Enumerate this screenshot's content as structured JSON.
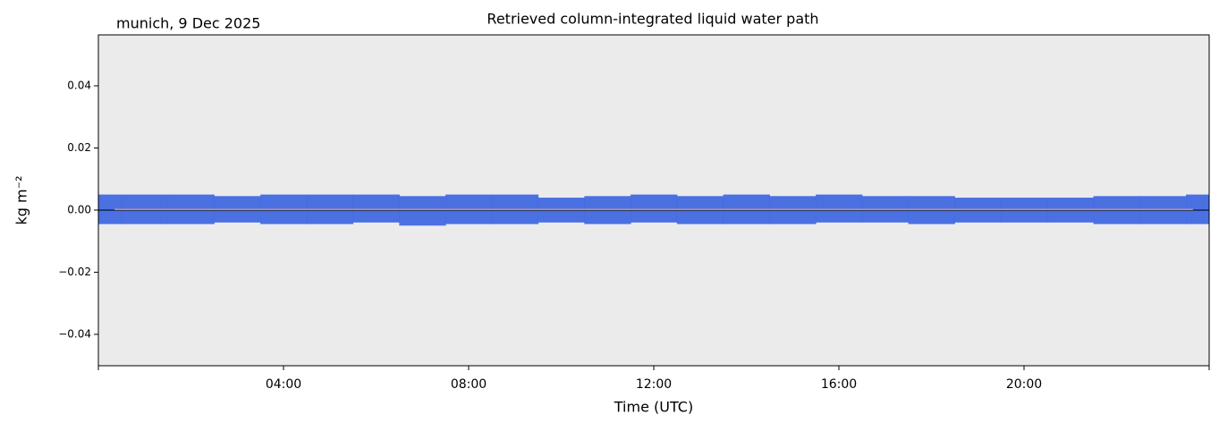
{
  "chart_data": {
    "type": "scatter",
    "title": "Retrieved column-integrated liquid water path",
    "subtitle": "munich, 9 Dec 2025",
    "xlabel": "Time (UTC)",
    "ylabel": "kg m⁻²",
    "xlim": [
      0,
      24
    ],
    "xticks": [
      {
        "value": 4,
        "label": "04:00"
      },
      {
        "value": 8,
        "label": "08:00"
      },
      {
        "value": 12,
        "label": "12:00"
      },
      {
        "value": 16,
        "label": "16:00"
      },
      {
        "value": 20,
        "label": "20:00"
      }
    ],
    "ylim": [
      -0.0501,
      0.0564
    ],
    "yticks": [
      {
        "value": -0.04,
        "label": "−0.04"
      },
      {
        "value": -0.02,
        "label": "−0.02"
      },
      {
        "value": 0,
        "label": "0.00"
      },
      0.02,
      0.04
    ],
    "background": "#ebebeb",
    "band": {
      "color": "#4169e1",
      "x": [
        0,
        1,
        2,
        3,
        4,
        5,
        6,
        7,
        8,
        9,
        10,
        11,
        12,
        13,
        14,
        15,
        16,
        17,
        18,
        19,
        20,
        21,
        22,
        23,
        24
      ],
      "upper": [
        0.005,
        0.005,
        0.005,
        0.0045,
        0.005,
        0.005,
        0.005,
        0.0045,
        0.005,
        0.005,
        0.004,
        0.0045,
        0.005,
        0.0045,
        0.005,
        0.0045,
        0.005,
        0.0045,
        0.0045,
        0.004,
        0.004,
        0.004,
        0.0045,
        0.0045,
        0.005
      ],
      "lower": [
        -0.0045,
        -0.0045,
        -0.0045,
        -0.004,
        -0.0045,
        -0.0045,
        -0.004,
        -0.005,
        -0.0045,
        -0.0045,
        -0.004,
        -0.0045,
        -0.004,
        -0.0045,
        -0.0045,
        -0.0045,
        -0.004,
        -0.004,
        -0.0045,
        -0.004,
        -0.004,
        -0.004,
        -0.0045,
        -0.0045,
        -0.0045
      ]
    },
    "mean_line": {
      "color": "#f4a460",
      "x": [
        0.35,
        6,
        12,
        18,
        23.65
      ],
      "values": [
        0.0002,
        0.0002,
        0.0002,
        0.0002,
        0.0002
      ]
    },
    "hline": {
      "value": 0,
      "color": "#000000"
    }
  }
}
